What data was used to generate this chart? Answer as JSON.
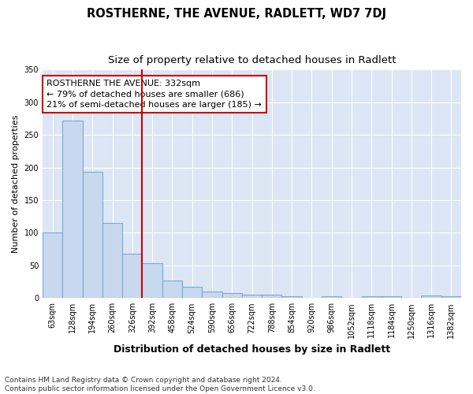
{
  "title": "ROSTHERNE, THE AVENUE, RADLETT, WD7 7DJ",
  "subtitle": "Size of property relative to detached houses in Radlett",
  "xlabel": "Distribution of detached houses by size in Radlett",
  "ylabel": "Number of detached properties",
  "bar_values": [
    100,
    272,
    194,
    115,
    68,
    54,
    27,
    17,
    10,
    8,
    5,
    5,
    3,
    0,
    3,
    0,
    3,
    3,
    0,
    4,
    3
  ],
  "bar_labels": [
    "63sqm",
    "128sqm",
    "194sqm",
    "260sqm",
    "326sqm",
    "392sqm",
    "458sqm",
    "524sqm",
    "590sqm",
    "656sqm",
    "722sqm",
    "788sqm",
    "854sqm",
    "920sqm",
    "986sqm",
    "1052sqm",
    "1118sqm",
    "1184sqm",
    "1250sqm",
    "1316sqm",
    "1382sqm"
  ],
  "bar_color": "#c8d8ee",
  "bar_edge_color": "#7aaad0",
  "bar_edge_width": 0.8,
  "vline_x": 4.5,
  "vline_color": "#cc0000",
  "annotation_line1": "ROSTHERNE THE AVENUE: 332sqm",
  "annotation_line2": "← 79% of detached houses are smaller (686)",
  "annotation_line3": "21% of semi-detached houses are larger (185) →",
  "annotation_box_facecolor": "#ffffff",
  "annotation_box_edgecolor": "#cc0000",
  "ylim": [
    0,
    350
  ],
  "yticks": [
    0,
    50,
    100,
    150,
    200,
    250,
    300,
    350
  ],
  "fig_facecolor": "#ffffff",
  "plot_facecolor": "#dce6f4",
  "grid_color": "#ffffff",
  "title_fontsize": 10.5,
  "subtitle_fontsize": 9.5,
  "xlabel_fontsize": 9,
  "ylabel_fontsize": 8,
  "tick_fontsize": 7,
  "footer_fontsize": 6.5,
  "annotation_fontsize": 8,
  "footer_line1": "Contains HM Land Registry data © Crown copyright and database right 2024.",
  "footer_line2": "Contains public sector information licensed under the Open Government Licence v3.0."
}
